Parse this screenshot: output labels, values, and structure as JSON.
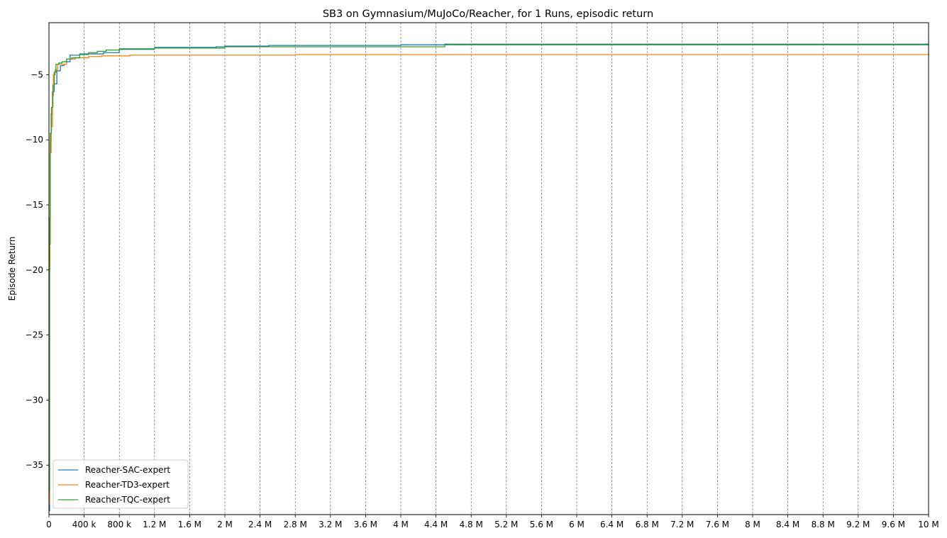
{
  "chart_data": {
    "type": "line",
    "title": "SB3 on Gymnasium/MuJoCo/Reacher, for 1 Runs, episodic return",
    "xlabel": "",
    "ylabel": "Episode Return",
    "xlim": [
      0,
      10000000
    ],
    "ylim": [
      -38.8,
      -1.0
    ],
    "x_ticks": [
      0,
      400000,
      800000,
      1200000,
      1600000,
      2000000,
      2400000,
      2800000,
      3200000,
      3600000,
      4000000,
      4400000,
      4800000,
      5200000,
      5600000,
      6000000,
      6400000,
      6800000,
      7200000,
      7600000,
      8000000,
      8400000,
      8800000,
      9200000,
      9600000,
      10000000
    ],
    "x_tick_labels": [
      "0",
      "400 k",
      "800 k",
      "1.2 M",
      "1.6 M",
      "2 M",
      "2.4 M",
      "2.8 M",
      "3.2 M",
      "3.6 M",
      "4 M",
      "4.4 M",
      "4.8 M",
      "5.2 M",
      "5.6 M",
      "6 M",
      "6.4 M",
      "6.8 M",
      "7.2 M",
      "7.6 M",
      "8 M",
      "8.4 M",
      "8.8 M",
      "9.2 M",
      "9.6 M",
      "10 M"
    ],
    "y_ticks": [
      -35,
      -30,
      -25,
      -20,
      -15,
      -10,
      -5
    ],
    "y_tick_labels": [
      "−35",
      "−30",
      "−25",
      "−20",
      "−15",
      "−10",
      "−5"
    ],
    "grid": "vertical dashed",
    "legend_position": "lower-left",
    "series": [
      {
        "name": "Reacher-SAC-expert",
        "color": "#1f77b4",
        "points": [
          [
            0,
            -38.5
          ],
          [
            8000,
            -16.0
          ],
          [
            15000,
            -10.2
          ],
          [
            25000,
            -8.0
          ],
          [
            40000,
            -6.3
          ],
          [
            60000,
            -5.7
          ],
          [
            90000,
            -4.7
          ],
          [
            130000,
            -4.3
          ],
          [
            170000,
            -4.2
          ],
          [
            200000,
            -4.0
          ],
          [
            240000,
            -3.5
          ],
          [
            330000,
            -3.5
          ],
          [
            350000,
            -3.4
          ],
          [
            620000,
            -3.3
          ],
          [
            800000,
            -3.05
          ],
          [
            1200000,
            -2.9
          ],
          [
            1900000,
            -2.85
          ],
          [
            2000000,
            -2.8
          ],
          [
            2500000,
            -2.75
          ],
          [
            4000000,
            -2.7
          ],
          [
            4500000,
            -2.65
          ],
          [
            10000000,
            -2.65
          ]
        ]
      },
      {
        "name": "Reacher-TD3-expert",
        "color": "#ff7f0e",
        "points": [
          [
            0,
            -38.0
          ],
          [
            6000,
            -20.0
          ],
          [
            12000,
            -11.0
          ],
          [
            25000,
            -9.0
          ],
          [
            40000,
            -6.6
          ],
          [
            50000,
            -5.0
          ],
          [
            70000,
            -4.6
          ],
          [
            100000,
            -4.2
          ],
          [
            200000,
            -3.8
          ],
          [
            300000,
            -3.7
          ],
          [
            450000,
            -3.6
          ],
          [
            600000,
            -3.55
          ],
          [
            720000,
            -3.55
          ],
          [
            920000,
            -3.5
          ],
          [
            2800000,
            -3.45
          ],
          [
            10000000,
            -3.35
          ]
        ]
      },
      {
        "name": "Reacher-TQC-expert",
        "color": "#2ca02c",
        "points": [
          [
            0,
            -37.0
          ],
          [
            6000,
            -18.0
          ],
          [
            15000,
            -9.5
          ],
          [
            28000,
            -7.5
          ],
          [
            45000,
            -5.8
          ],
          [
            60000,
            -4.8
          ],
          [
            80000,
            -4.2
          ],
          [
            110000,
            -4.1
          ],
          [
            150000,
            -4.0
          ],
          [
            200000,
            -3.8
          ],
          [
            260000,
            -3.7
          ],
          [
            350000,
            -3.45
          ],
          [
            450000,
            -3.3
          ],
          [
            550000,
            -3.2
          ],
          [
            650000,
            -3.1
          ],
          [
            800000,
            -3.0
          ],
          [
            1200000,
            -2.95
          ],
          [
            2000000,
            -2.85
          ],
          [
            4500000,
            -2.7
          ],
          [
            10000000,
            -2.7
          ]
        ]
      }
    ]
  }
}
